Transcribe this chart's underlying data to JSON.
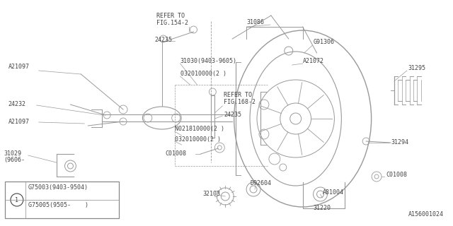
{
  "bg_color": "#ffffff",
  "line_color": "#999999",
  "text_color": "#444444",
  "figure_id": "A156001024",
  "legend": {
    "circle_label": "1",
    "row1": "G75003(9403-9504)",
    "row2": "G75005(9505-    )"
  }
}
